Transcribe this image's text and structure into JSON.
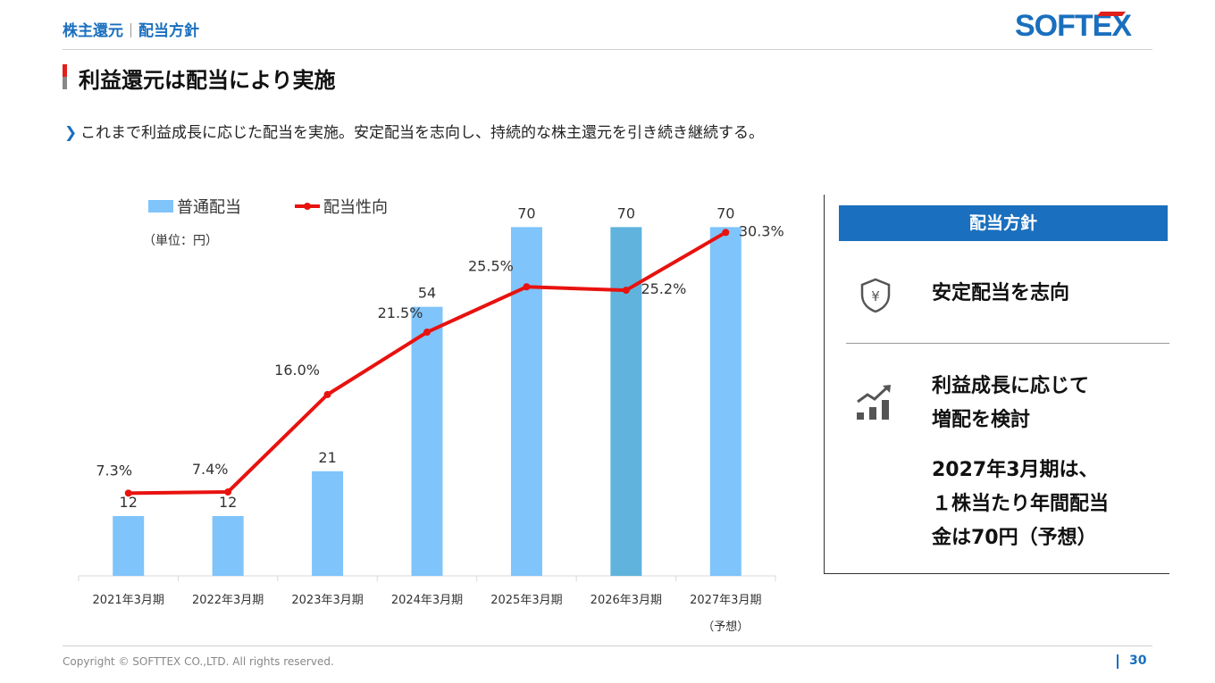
{
  "header": {
    "section": "株主還元",
    "subsection": "配当方針",
    "logo_text": "SOFTEX"
  },
  "heading": "利益還元は配当により実施",
  "bullet": "これまで利益成長に応じた配当を実施。安定配当を志向し、持続的な株主還元を引き続き継続する。",
  "chart_data": {
    "type": "bar",
    "categories": [
      "2021年3月期",
      "2022年3月期",
      "2023年3月期",
      "2024年3月期",
      "2025年3月期",
      "2026年3月期",
      "2027年3月期"
    ],
    "category_notes": [
      "",
      "",
      "",
      "",
      "",
      "",
      "（予想）"
    ],
    "unit_note": "（単位：円）",
    "series": [
      {
        "name": "普通配当",
        "type": "bar",
        "values": [
          12,
          12,
          21,
          54,
          70,
          70,
          70
        ],
        "labels": [
          "12",
          "12",
          "21",
          "54",
          "70",
          "70",
          "70"
        ]
      },
      {
        "name": "配当性向",
        "type": "line",
        "values": [
          7.3,
          7.4,
          16.0,
          21.5,
          25.5,
          25.2,
          30.3
        ],
        "labels": [
          "7.3%",
          "7.4%",
          "16.0%",
          "21.5%",
          "25.5%",
          "25.2%",
          "30.3%"
        ]
      }
    ],
    "ylim": [
      0,
      80
    ],
    "y2lim": [
      0,
      32
    ],
    "highlight_index": 5,
    "colors": {
      "bar": "#7fc4fb",
      "bar_highlight": "#5fb3dc",
      "line": "#e8120f",
      "axis": "#d9d9d9"
    },
    "legend_position": "top-left"
  },
  "panel": {
    "title": "配当方針",
    "item1": {
      "icon": "yen-shield-icon",
      "text": "安定配当を志向"
    },
    "item2": {
      "icon": "growth-chart-icon",
      "line1": "利益成長に応じて",
      "line2": "増配を検討",
      "note1": "2027年3月期は、",
      "note2": "１株当たり年間配当",
      "note3": "金は70円（予想）"
    }
  },
  "footer": {
    "copyright": "Copyright © SOFTTEX CO.,LTD. All rights reserved.",
    "page": "30"
  }
}
